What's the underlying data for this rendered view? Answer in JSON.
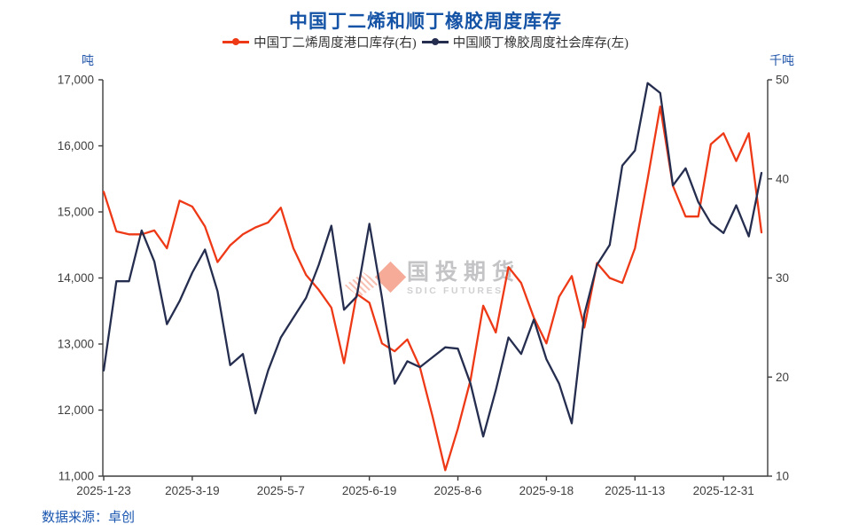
{
  "title": "中国丁二烯和顺丁橡胶周度库存",
  "source": "数据来源：卓创",
  "watermark": {
    "name": "国投期货",
    "sub": "SDIC FUTURES"
  },
  "colors": {
    "title_blue": "#1453a5",
    "axis_unit_blue": "#2257aa",
    "source_blue": "#1a56b0",
    "axis_line": "#3d3d3d",
    "tick_text": "#3f3f3f",
    "series_red": "#ee3917",
    "series_navy": "#262e50"
  },
  "chart_data": {
    "type": "line",
    "title": "中国丁二烯和顺丁橡胶周度库存",
    "legend_position": "top",
    "grid": false,
    "left_axis": {
      "title": "吨",
      "min": 11000,
      "max": 17000,
      "step": 1000,
      "tick_labels": [
        "11,000",
        "12,000",
        "13,000",
        "14,000",
        "15,000",
        "16,000",
        "17,000"
      ]
    },
    "right_axis": {
      "title": "千吨",
      "min": 10,
      "max": 50,
      "step": 10,
      "tick_labels": [
        "10",
        "20",
        "30",
        "40",
        "50"
      ]
    },
    "x_labels": [
      "2025-1-23",
      "2025-3-19",
      "2025-5-7",
      "2025-6-19",
      "2025-8-6",
      "2025-9-18",
      "2025-11-13",
      "2025-12-31"
    ],
    "x_label_indices": [
      0,
      7,
      14,
      21,
      28,
      35,
      42,
      49
    ],
    "series": [
      {
        "name": "中国丁二烯周度港口库存(右)",
        "axis": "right",
        "unit": "千吨",
        "color": "#ee3917",
        "values": [
          38.7,
          34.7,
          34.4,
          34.4,
          34.8,
          33.0,
          37.8,
          37.2,
          35.2,
          31.6,
          33.3,
          34.4,
          35.1,
          35.6,
          37.1,
          33.0,
          30.3,
          28.8,
          27.0,
          21.4,
          28.4,
          27.5,
          23.4,
          22.6,
          23.8,
          21.0,
          16.0,
          10.6,
          14.8,
          19.7,
          27.2,
          24.5,
          31.1,
          29.5,
          26.0,
          23.4,
          28.1,
          30.2,
          25.0,
          31.5,
          30.0,
          29.5,
          33.0,
          40.0,
          47.3,
          39.3,
          36.2,
          36.2,
          43.5,
          44.6,
          41.8,
          44.6,
          34.6
        ]
      },
      {
        "name": "中国顺丁橡胶周度社会库存(左)",
        "axis": "left",
        "unit": "吨",
        "color": "#262e50",
        "values": [
          12600,
          13950,
          13950,
          14720,
          14250,
          13300,
          13650,
          14080,
          14430,
          13800,
          12680,
          12850,
          11950,
          12600,
          13100,
          13400,
          13700,
          14200,
          14790,
          13520,
          13720,
          14820,
          13700,
          12400,
          12740,
          12650,
          12800,
          12950,
          12930,
          12400,
          11600,
          12300,
          13100,
          12850,
          13370,
          12770,
          12400,
          11800,
          13450,
          14200,
          14500,
          15700,
          15930,
          16950,
          16800,
          15400,
          15660,
          15150,
          14830,
          14680,
          15100,
          14630,
          15590
        ]
      }
    ]
  }
}
